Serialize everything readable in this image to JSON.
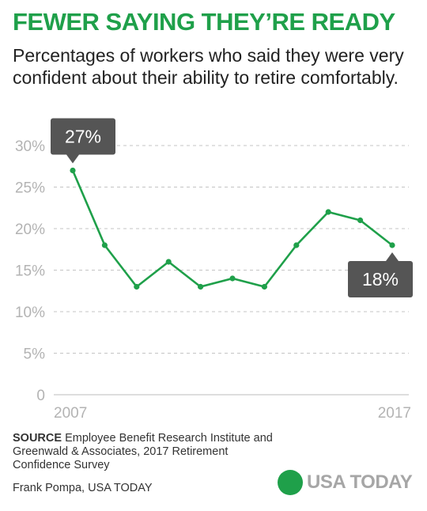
{
  "header": {
    "title": "FEWER SAYING THEY’RE READY",
    "subtitle": "Percentages of workers who said they were very confident about their ability to retire comfortably."
  },
  "chart_data": {
    "type": "line",
    "title": "",
    "xlabel": "",
    "ylabel": "",
    "x_tick_labels": [
      "2007",
      "2017"
    ],
    "y_tick_labels": [
      "0",
      "5%",
      "10%",
      "15%",
      "20%",
      "25%",
      "30%"
    ],
    "y_ticks": [
      0,
      5,
      10,
      15,
      20,
      25,
      30
    ],
    "ylim": [
      0,
      30
    ],
    "xlim": [
      2007,
      2017
    ],
    "grid": true,
    "x": [
      2007,
      2008,
      2009,
      2010,
      2011,
      2012,
      2013,
      2014,
      2015,
      2016,
      2017
    ],
    "series": [
      {
        "values": [
          27,
          18,
          13,
          16,
          13,
          14,
          13,
          18,
          22,
          21,
          18
        ]
      }
    ],
    "callouts": [
      {
        "index": 0,
        "label": "27%"
      },
      {
        "index": 10,
        "label": "18%"
      }
    ]
  },
  "footer": {
    "source_label": "SOURCE",
    "source_text": "Employee Benefit Research Institute and Greenwald & Associates, 2017 Retirement Confidence Survey",
    "credit": "Frank Pompa, USA TODAY",
    "logo_text": "USA TODAY"
  },
  "colors": {
    "accent": "#1fa04a",
    "callout": "#555555",
    "grid": "#c4c4c4",
    "tick": "#b3b3b3"
  }
}
